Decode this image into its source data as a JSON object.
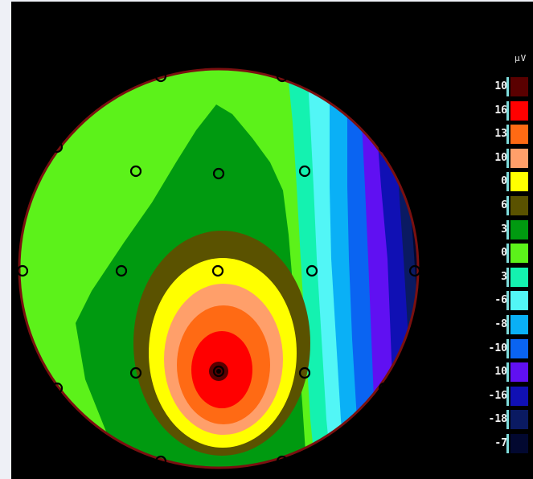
{
  "unit": "μV",
  "scale": [
    {
      "label": "10",
      "color": "#5a0000"
    },
    {
      "label": "16",
      "color": "#ff0000"
    },
    {
      "label": "13",
      "color": "#ff6a14"
    },
    {
      "label": "10",
      "color": "#ff9f6a"
    },
    {
      "label": "0",
      "color": "#ffff00"
    },
    {
      "label": "6",
      "color": "#5a5200"
    },
    {
      "label": "3",
      "color": "#009a10"
    },
    {
      "label": "0",
      "color": "#5cf21a"
    },
    {
      "label": "3",
      "color": "#14f2b0"
    },
    {
      "label": "-6",
      "color": "#52f6f6"
    },
    {
      "label": "-8",
      "color": "#0ab0f6"
    },
    {
      "label": "-10",
      "color": "#0a64f2"
    },
    {
      "label": "10",
      "color": "#6010f2"
    },
    {
      "label": "-16",
      "color": "#1010b4"
    },
    {
      "label": "-18",
      "color": "#0a1a62"
    },
    {
      "label": "-7",
      "color": "#020830"
    }
  ],
  "colors": {
    "background": "#000000",
    "head_outline": "#7a1010",
    "electrode": "#000000"
  },
  "electrodes": {
    "count": 19
  }
}
